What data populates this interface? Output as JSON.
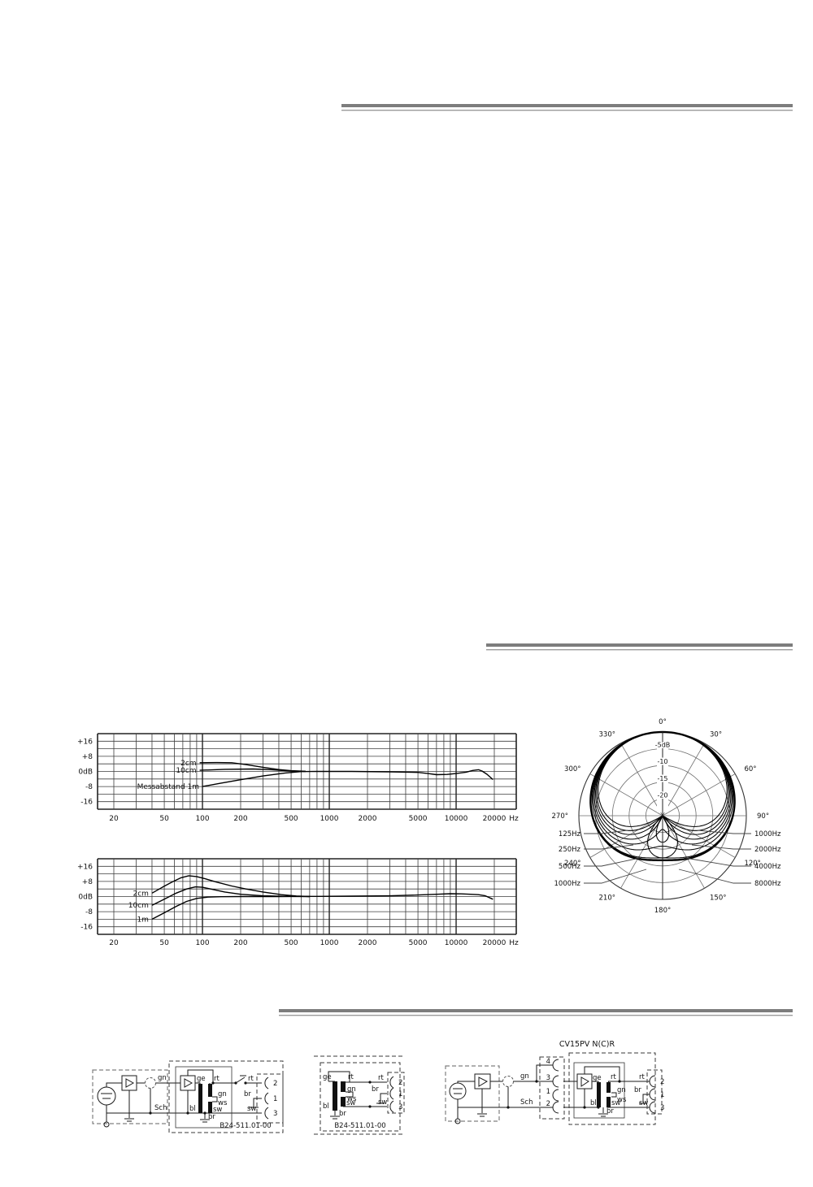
{
  "page": {
    "background": "#ffffff",
    "line_color": "#1a1a1a"
  },
  "chart_data": [
    {
      "type": "line",
      "title": "",
      "xlabel": "Hz",
      "x_scale": "log",
      "xlim": [
        20,
        20000
      ],
      "ylim": [
        -20,
        20
      ],
      "grid": true,
      "yticks": [
        {
          "v": 16,
          "label": "+16"
        },
        {
          "v": 8,
          "label": "+8"
        },
        {
          "v": 0,
          "label": "0dB"
        },
        {
          "v": -8,
          "label": "-8"
        },
        {
          "v": -16,
          "label": "-16"
        }
      ],
      "xticks": [
        {
          "v": 20,
          "label": "20"
        },
        {
          "v": 50,
          "label": "50"
        },
        {
          "v": 100,
          "label": "100"
        },
        {
          "v": 200,
          "label": "200"
        },
        {
          "v": 500,
          "label": "500"
        },
        {
          "v": 1000,
          "label": "1000"
        },
        {
          "v": 2000,
          "label": "2000"
        },
        {
          "v": 5000,
          "label": "5000"
        },
        {
          "v": 10000,
          "label": "10000"
        },
        {
          "v": 20000,
          "label": "20000"
        }
      ],
      "x_unit": "Hz",
      "series": [
        {
          "name": "2cm",
          "points": [
            [
              95,
              4.6
            ],
            [
              130,
              4.7
            ],
            [
              170,
              4.6
            ],
            [
              220,
              3.6
            ],
            [
              300,
              2.2
            ],
            [
              400,
              1.0
            ],
            [
              500,
              0.4
            ],
            [
              650,
              0.1
            ]
          ]
        },
        {
          "name": "10cm",
          "points": [
            [
              95,
              0.6
            ],
            [
              150,
              1.1
            ],
            [
              250,
              1.3
            ],
            [
              350,
              0.9
            ],
            [
              500,
              0.2
            ],
            [
              650,
              0.0
            ]
          ]
        },
        {
          "name": "Messabstand  1m",
          "points": [
            [
              100,
              -8
            ],
            [
              140,
              -6.2
            ],
            [
              200,
              -4.4
            ],
            [
              300,
              -2.4
            ],
            [
              450,
              -0.8
            ],
            [
              600,
              -0.1
            ],
            [
              800,
              0
            ],
            [
              1500,
              0
            ],
            [
              3000,
              -0.2
            ],
            [
              5000,
              -0.5
            ],
            [
              6000,
              -1.1
            ],
            [
              7000,
              -1.7
            ],
            [
              8500,
              -1.6
            ],
            [
              10000,
              -1.1
            ],
            [
              12000,
              -0.4
            ],
            [
              13500,
              0.5
            ],
            [
              15000,
              0.9
            ],
            [
              16000,
              0.2
            ],
            [
              17500,
              -1.5
            ],
            [
              19500,
              -4.3
            ]
          ]
        }
      ]
    },
    {
      "type": "polar",
      "title": "",
      "db_rings": [
        -5,
        -10,
        -15,
        -20
      ],
      "db_ring_labels": [
        "-5dB",
        "-10",
        "-15",
        "-20"
      ],
      "db_min": -25,
      "angle_step": 30,
      "angle_labels": [
        "0°",
        "30°",
        "60°",
        "90°",
        "120°",
        "150°",
        "180°",
        "210°",
        "240°",
        "270°",
        "300°",
        "330°"
      ],
      "curves": [
        {
          "name": "125Hz",
          "width": 0.62
        },
        {
          "name": "250Hz",
          "width": 0.58
        },
        {
          "name": "500Hz",
          "width": 0.545
        },
        {
          "name": "1000Hz",
          "width": 0.51
        },
        {
          "name": "2000Hz",
          "width": 0.47
        },
        {
          "name": "4000Hz",
          "width": 0.43
        },
        {
          "name": "8000Hz",
          "width": 0.38
        }
      ],
      "envelope_width": 0.63,
      "left_legend": [
        "125Hz",
        "250Hz",
        "500Hz",
        "1000Hz"
      ],
      "right_legend": [
        "1000Hz",
        "2000Hz",
        "4000Hz",
        "8000Hz"
      ]
    },
    {
      "type": "line",
      "title": "",
      "xlabel": "Hz",
      "x_scale": "log",
      "xlim": [
        20,
        20000
      ],
      "ylim": [
        -20,
        20
      ],
      "grid": true,
      "yticks": [
        {
          "v": 16,
          "label": "+16"
        },
        {
          "v": 8,
          "label": "+8"
        },
        {
          "v": 0,
          "label": "0dB"
        },
        {
          "v": -8,
          "label": "-8"
        },
        {
          "v": -16,
          "label": "-16"
        }
      ],
      "xticks": [
        {
          "v": 20,
          "label": "20"
        },
        {
          "v": 50,
          "label": "50"
        },
        {
          "v": 100,
          "label": "100"
        },
        {
          "v": 200,
          "label": "200"
        },
        {
          "v": 500,
          "label": "500"
        },
        {
          "v": 1000,
          "label": "1000"
        },
        {
          "v": 2000,
          "label": "2000"
        },
        {
          "v": 5000,
          "label": "5000"
        },
        {
          "v": 10000,
          "label": "10000"
        },
        {
          "v": 20000,
          "label": "20000"
        }
      ],
      "x_unit": "Hz",
      "series": [
        {
          "name": "2cm",
          "points": [
            [
              40,
              1.8
            ],
            [
              48,
              4.8
            ],
            [
              58,
              7.8
            ],
            [
              68,
              10.0
            ],
            [
              78,
              11.0
            ],
            [
              90,
              10.6
            ],
            [
              105,
              9.4
            ],
            [
              130,
              7.6
            ],
            [
              170,
              5.6
            ],
            [
              220,
              4.0
            ],
            [
              300,
              2.4
            ],
            [
              420,
              1.0
            ],
            [
              550,
              0.3
            ],
            [
              700,
              0.0
            ]
          ]
        },
        {
          "name": "10cm",
          "points": [
            [
              40,
              -4.6
            ],
            [
              50,
              -1.4
            ],
            [
              62,
              1.8
            ],
            [
              75,
              4.0
            ],
            [
              88,
              5.1
            ],
            [
              100,
              4.9
            ],
            [
              120,
              3.8
            ],
            [
              150,
              2.4
            ],
            [
              200,
              1.2
            ],
            [
              300,
              0.4
            ],
            [
              500,
              0.1
            ],
            [
              700,
              0.0
            ]
          ]
        },
        {
          "name": "1m",
          "points": [
            [
              40,
              -12
            ],
            [
              50,
              -8.6
            ],
            [
              62,
              -5.2
            ],
            [
              75,
              -2.6
            ],
            [
              90,
              -1.0
            ],
            [
              110,
              -0.3
            ],
            [
              140,
              -0.1
            ],
            [
              200,
              0
            ],
            [
              400,
              0
            ],
            [
              800,
              0.1
            ],
            [
              1500,
              0.2
            ],
            [
              3000,
              0.4
            ],
            [
              5000,
              0.8
            ],
            [
              7000,
              1.2
            ],
            [
              9000,
              1.5
            ],
            [
              11000,
              1.4
            ],
            [
              13000,
              1.2
            ],
            [
              15000,
              1.0
            ],
            [
              17000,
              0.4
            ],
            [
              19500,
              -1.4
            ]
          ]
        }
      ]
    }
  ],
  "circuits": {
    "labels": {
      "gn": "gn",
      "sch": "Sch",
      "ge": "ge",
      "bl": "bl",
      "rt": "rt",
      "gn2": "gn",
      "ws": "ws",
      "sw": "sw",
      "br": "br",
      "p1": "1",
      "p2": "2",
      "p3": "3",
      "p4": "4",
      "part": "B24-511.01-00",
      "title": "CV15PV N(C)R"
    }
  }
}
